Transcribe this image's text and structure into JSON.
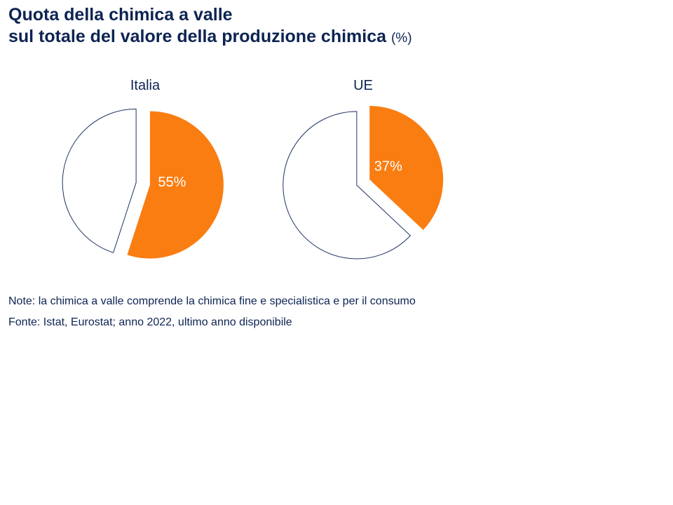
{
  "title_line1": "Quota della chimica a valle",
  "title_line2": "sul totale del valore della produzione chimica",
  "title_unit": "(%)",
  "colors": {
    "highlight": "#fa7d12",
    "outline": "#1f3364",
    "text": "#0d2452"
  },
  "chart_data": [
    {
      "type": "pie",
      "title": "Italia",
      "slices": [
        {
          "value": 55,
          "label": "55%",
          "color": "#fa7d12",
          "exploded": true
        },
        {
          "value": 45,
          "label": "",
          "color": "#ffffff",
          "exploded": true
        }
      ]
    },
    {
      "type": "pie",
      "title": "UE",
      "slices": [
        {
          "value": 37,
          "label": "37%",
          "color": "#fa7d12",
          "exploded": true
        },
        {
          "value": 63,
          "label": "",
          "color": "#ffffff",
          "exploded": true
        }
      ]
    }
  ],
  "note": "Note: la chimica a valle comprende la chimica fine e specialistica e per il consumo",
  "source": "Fonte: Istat, Eurostat; anno 2022, ultimo anno disponibile"
}
